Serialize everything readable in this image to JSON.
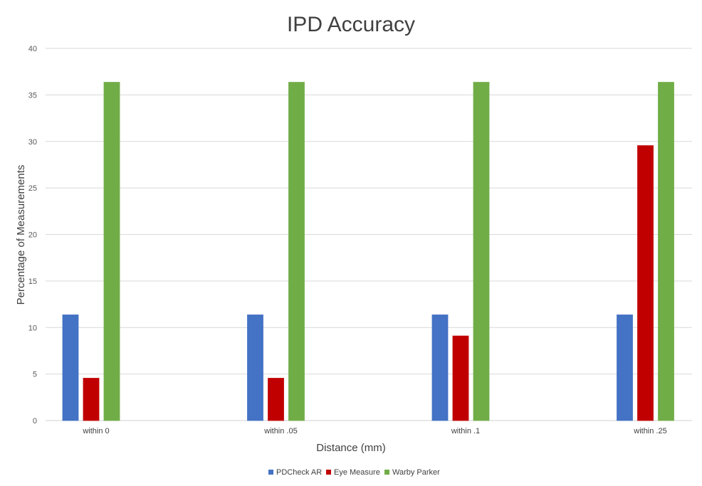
{
  "chart_data": {
    "type": "bar",
    "title": "IPD Accuracy",
    "xlabel": "Distance (mm)",
    "ylabel": "Percentage of Measurements",
    "ylim": [
      0,
      40
    ],
    "yticks": [
      0,
      5,
      10,
      15,
      20,
      25,
      30,
      35,
      40
    ],
    "grid": true,
    "legend_placement": "bottom",
    "categories": [
      "within 0",
      "within .05",
      "within .1",
      "within .25"
    ],
    "series": [
      {
        "name": "PDCheck AR",
        "color": "#4472C4",
        "values": [
          11.36,
          11.36,
          11.36,
          11.36
        ]
      },
      {
        "name": "Eye Measure",
        "color": "#C00000",
        "values": [
          4.55,
          4.55,
          9.09,
          29.55
        ]
      },
      {
        "name": "Warby Parker",
        "color": "#70AD47",
        "values": [
          36.36,
          36.36,
          36.36,
          36.36
        ]
      }
    ]
  }
}
